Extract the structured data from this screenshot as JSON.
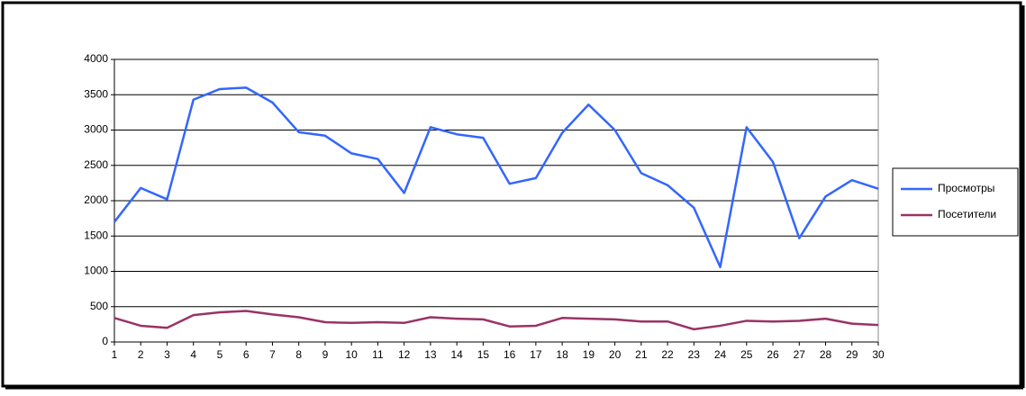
{
  "chart_data": {
    "type": "line",
    "x": [
      1,
      2,
      3,
      4,
      5,
      6,
      7,
      8,
      9,
      10,
      11,
      12,
      13,
      14,
      15,
      16,
      17,
      18,
      19,
      20,
      21,
      22,
      23,
      24,
      25,
      26,
      27,
      28,
      29,
      30
    ],
    "series": [
      {
        "name": "Просмотры",
        "color": "#3366ff",
        "values": [
          1700,
          2180,
          2020,
          3430,
          3580,
          3600,
          3390,
          2970,
          2920,
          2670,
          2590,
          2110,
          3040,
          2940,
          2890,
          2240,
          2320,
          2960,
          3360,
          3000,
          2390,
          2220,
          1900,
          1060,
          3040,
          2550,
          1470,
          2060,
          2290,
          2170
        ]
      },
      {
        "name": "Посетители",
        "color": "#993366",
        "values": [
          340,
          230,
          200,
          380,
          420,
          440,
          390,
          350,
          280,
          270,
          280,
          270,
          350,
          330,
          320,
          220,
          230,
          340,
          330,
          320,
          290,
          290,
          180,
          230,
          300,
          290,
          300,
          330,
          260,
          240
        ]
      }
    ],
    "xlim": [
      1,
      30
    ],
    "xticks": [
      1,
      2,
      3,
      4,
      5,
      6,
      7,
      8,
      9,
      10,
      11,
      12,
      13,
      14,
      15,
      16,
      17,
      18,
      19,
      20,
      21,
      22,
      23,
      24,
      25,
      26,
      27,
      28,
      29,
      30
    ],
    "ylim": [
      0,
      4000
    ],
    "yticks": [
      0,
      500,
      1000,
      1500,
      2000,
      2500,
      3000,
      3500,
      4000
    ],
    "grid": true,
    "legend": "right"
  }
}
